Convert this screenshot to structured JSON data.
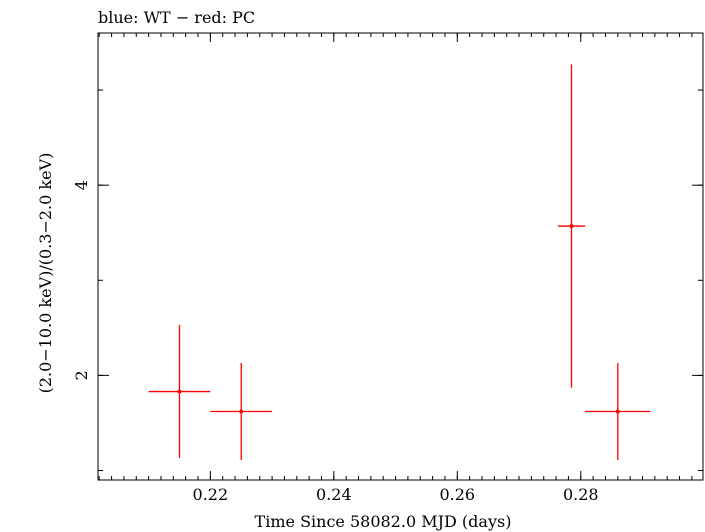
{
  "chart_data": {
    "type": "scatter",
    "title": "blue: WT − red: PC",
    "xlabel": "Time Since 58082.0 MJD (days)",
    "ylabel": "(2.0−10.0 keV)/(0.3−2.0 keV)",
    "xlim": [
      0.2018,
      0.2998
    ],
    "ylim": [
      0.9,
      5.6
    ],
    "x_ticks": [
      {
        "value": 0.22,
        "label": "0.22"
      },
      {
        "value": 0.24,
        "label": "0.24"
      },
      {
        "value": 0.26,
        "label": "0.26"
      },
      {
        "value": 0.28,
        "label": "0.28"
      }
    ],
    "x_minor_step": 0.002,
    "y_ticks": [
      {
        "value": 2,
        "label": "2"
      },
      {
        "value": 4,
        "label": "4"
      }
    ],
    "y_minor_step": 1,
    "series": [
      {
        "name": "PC",
        "color": "#ff0000",
        "points": [
          {
            "x": 0.215,
            "xerr": 0.005,
            "y": 1.83,
            "yerr_low": 0.7,
            "yerr_high": 0.7
          },
          {
            "x": 0.225,
            "xerr": 0.005,
            "y": 1.62,
            "yerr_low": 0.51,
            "yerr_high": 0.51
          },
          {
            "x": 0.2785,
            "xerr": 0.0022,
            "y": 3.57,
            "yerr_low": 1.7,
            "yerr_high": 1.7
          },
          {
            "x": 0.286,
            "xerr": 0.0053,
            "y": 1.62,
            "yerr_low": 0.51,
            "yerr_high": 0.51
          }
        ]
      }
    ]
  }
}
